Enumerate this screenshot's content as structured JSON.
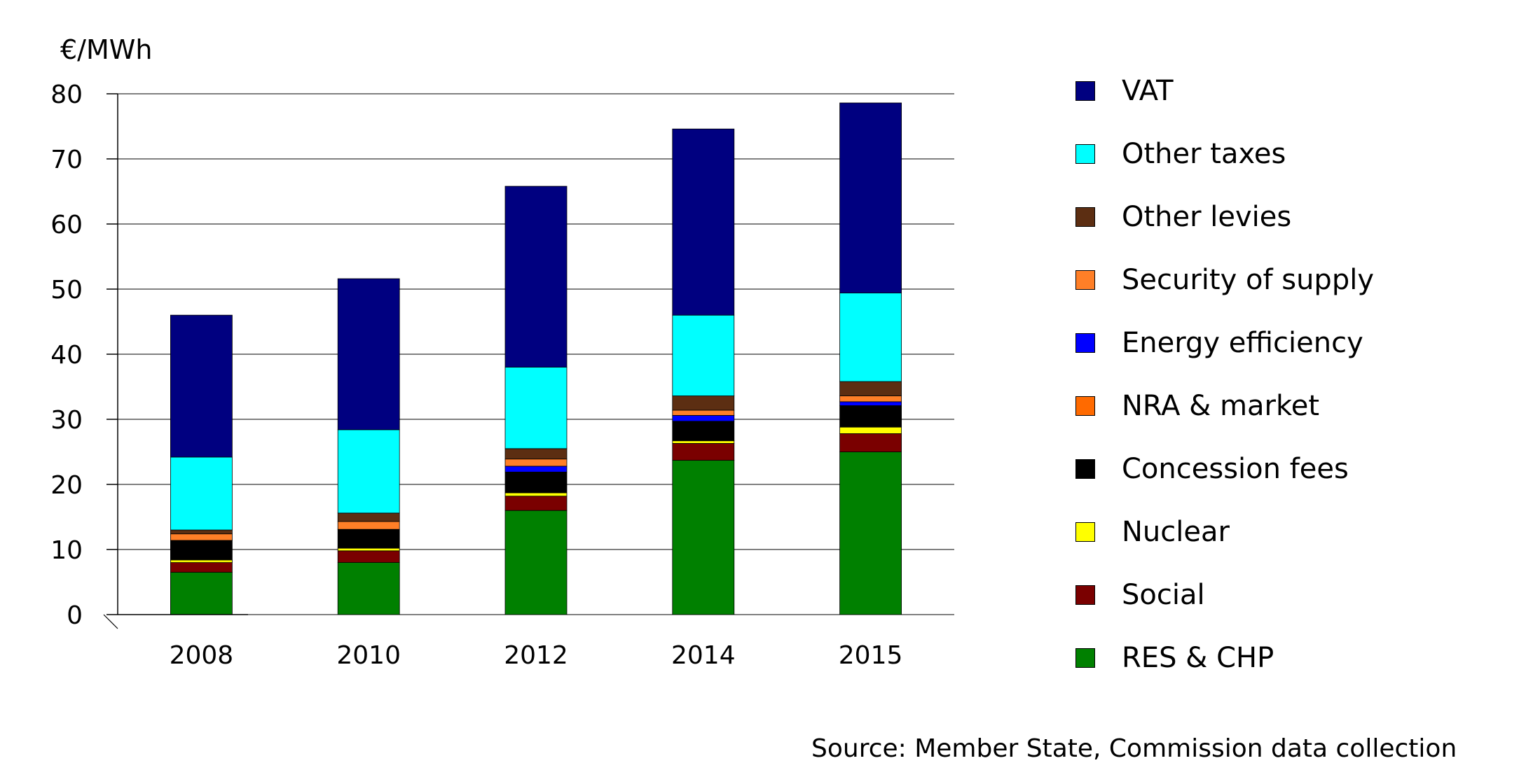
{
  "chart_data": {
    "type": "bar",
    "stacked": true,
    "unit_label": "€/MWh",
    "ylim": [
      0,
      80
    ],
    "yticks": [
      0,
      10,
      20,
      30,
      40,
      50,
      60,
      70,
      80
    ],
    "grid": true,
    "categories": [
      "2008",
      "2010",
      "2012",
      "2014",
      "2015"
    ],
    "series": [
      {
        "name": "RES & CHP",
        "color": "#008000",
        "values": [
          6.5,
          8.0,
          16.0,
          23.7,
          25.0
        ]
      },
      {
        "name": "Social",
        "color": "#7a0000",
        "values": [
          1.5,
          1.8,
          2.2,
          2.6,
          2.8
        ]
      },
      {
        "name": "Nuclear",
        "color": "#ffff00",
        "values": [
          0.4,
          0.4,
          0.5,
          0.4,
          1.0
        ]
      },
      {
        "name": "Concession fees",
        "color": "#000000",
        "values": [
          3.0,
          2.9,
          3.2,
          3.0,
          3.3
        ]
      },
      {
        "name": "NRA & market",
        "color": "#ff6a00",
        "values": [
          0.0,
          0.0,
          0.0,
          0.0,
          0.0
        ]
      },
      {
        "name": "Energy efficiency",
        "color": "#0000ff",
        "values": [
          0.0,
          0.0,
          0.9,
          0.9,
          0.6
        ]
      },
      {
        "name": "Security of supply",
        "color": "#ff7f27",
        "values": [
          1.0,
          1.2,
          1.1,
          0.8,
          0.9
        ]
      },
      {
        "name": "Other levies",
        "color": "#5c2e12",
        "values": [
          0.6,
          1.3,
          1.6,
          2.2,
          2.2
        ]
      },
      {
        "name": "Other taxes",
        "color": "#00ffff",
        "values": [
          11.2,
          12.8,
          12.5,
          12.4,
          13.6
        ]
      },
      {
        "name": "VAT",
        "color": "#000080",
        "values": [
          21.8,
          23.2,
          27.8,
          28.6,
          29.2
        ]
      }
    ]
  },
  "legend": [
    {
      "label": "VAT",
      "color": "#000080"
    },
    {
      "label": "Other taxes",
      "color": "#00ffff"
    },
    {
      "label": "Other levies",
      "color": "#5c2e12"
    },
    {
      "label": "Security of supply",
      "color": "#ff7f27"
    },
    {
      "label": "Energy efficiency",
      "color": "#0000ff"
    },
    {
      "label": "NRA & market",
      "color": "#ff6a00"
    },
    {
      "label": "Concession fees",
      "color": "#000000"
    },
    {
      "label": "Nuclear",
      "color": "#ffff00"
    },
    {
      "label": "Social",
      "color": "#7a0000"
    },
    {
      "label": "RES & CHP",
      "color": "#008000"
    }
  ],
  "source": "Source: Member State, Commission data collection"
}
